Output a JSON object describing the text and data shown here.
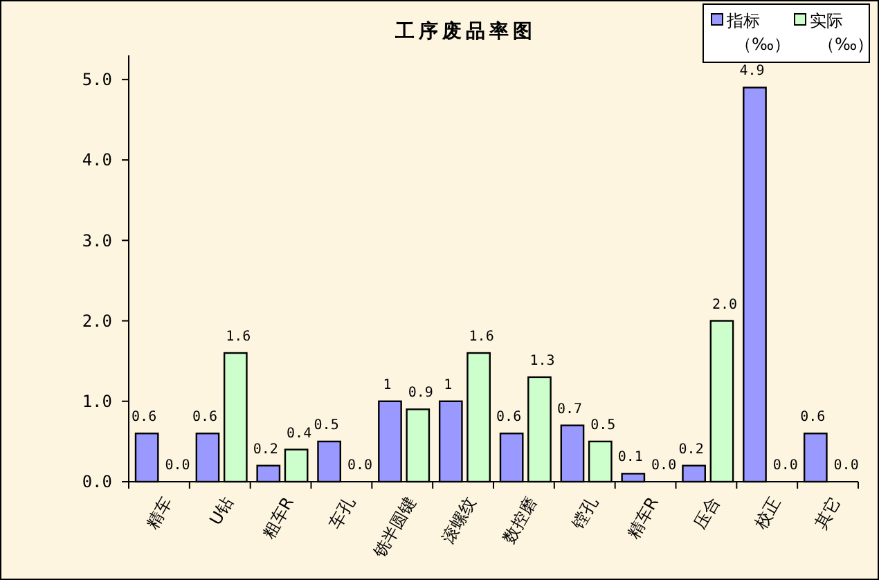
{
  "chart_data": {
    "type": "bar",
    "title": "工序废品率图",
    "categories": [
      "精车",
      "U钻",
      "粗车R",
      "车孔",
      "铣半圆键",
      "滚螺纹",
      "数控磨",
      "镗孔",
      "精车R",
      "压合",
      "校正",
      "其它"
    ],
    "series": [
      {
        "name": "指标（‰）",
        "color": "#9999ff",
        "values": [
          0.6,
          0.6,
          0.2,
          0.5,
          1,
          1,
          0.6,
          0.7,
          0.1,
          0.2,
          4.9,
          0.6
        ],
        "value_labels": [
          "0.6",
          "0.6",
          "0.2",
          "0.5",
          "1",
          "1",
          "0.6",
          "0.7",
          "0.1",
          "0.2",
          "4.9",
          "0.6"
        ]
      },
      {
        "name": "实际（‰）",
        "color": "#ccffcc",
        "values": [
          0.0,
          1.6,
          0.4,
          0.0,
          0.9,
          1.6,
          1.3,
          0.5,
          0.0,
          2.0,
          0.0,
          0.0
        ],
        "value_labels": [
          "0.0",
          "1.6",
          "0.4",
          "0.0",
          "0.9",
          "1.6",
          "1.3",
          "0.5",
          "0.0",
          "2.0",
          "0.0",
          "0.0"
        ]
      }
    ],
    "ylim": [
      0,
      5.3
    ],
    "yticks": [
      {
        "value": 0,
        "label": "0.0"
      },
      {
        "value": 1,
        "label": "1.0"
      },
      {
        "value": 2,
        "label": "2.0"
      },
      {
        "value": 3,
        "label": "3.0"
      },
      {
        "value": 4,
        "label": "4.0"
      },
      {
        "value": 5,
        "label": "5.0"
      }
    ],
    "grid": false,
    "legend": "top right"
  }
}
